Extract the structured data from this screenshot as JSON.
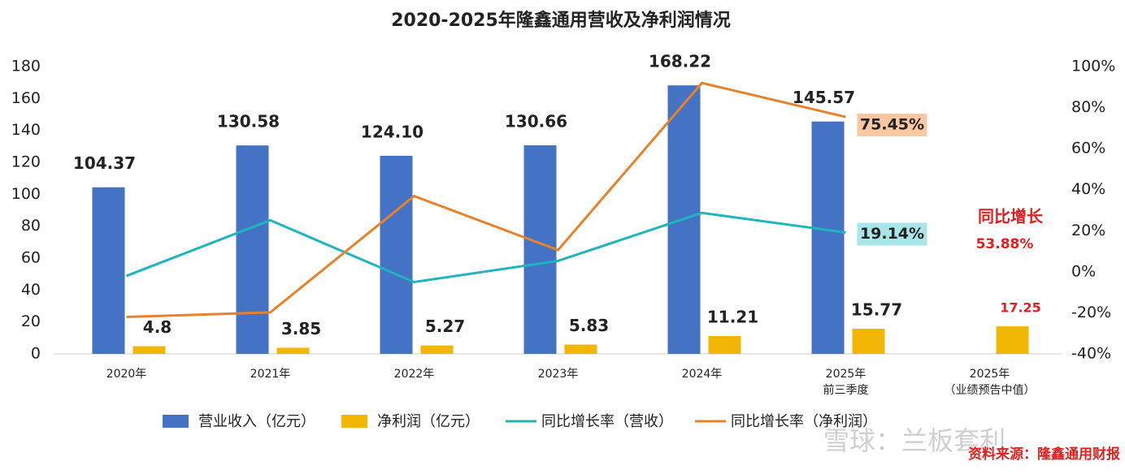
{
  "chart_data": {
    "type": "bar_line",
    "title": "2020-2025年隆鑫通用营收及净利润情况",
    "categories": [
      [
        "2020年"
      ],
      [
        "2021年"
      ],
      [
        "2022年"
      ],
      [
        "2023年"
      ],
      [
        "2024年"
      ],
      [
        "2025年",
        "前三季度"
      ],
      [
        "2025年",
        "（业绩预告中值）"
      ]
    ],
    "series": [
      {
        "name": "营业收入（亿元）",
        "kind": "bar",
        "color": "#4472c4",
        "values": [
          104.37,
          130.58,
          124.1,
          130.66,
          168.22,
          145.57,
          null
        ],
        "value_labels": [
          "104.37",
          "130.58",
          "124.10",
          "130.66",
          "168.22",
          "145.57",
          null
        ]
      },
      {
        "name": "净利润（亿元）",
        "kind": "bar",
        "color": "#f2b705",
        "values": [
          4.8,
          3.85,
          5.27,
          5.83,
          11.21,
          15.77,
          17.25
        ],
        "value_label_colors": [
          "#222",
          "#222",
          "#222",
          "#222",
          "#222",
          "#222",
          "#e02020"
        ]
      },
      {
        "name": "同比增长率（营收）",
        "kind": "line",
        "axis": "y2",
        "color": "#1fb5c0",
        "label_background": "#a8e6ea",
        "values": [
          -2,
          25.1,
          -5,
          5.3,
          28.7,
          19.14,
          null
        ],
        "value_labels": [
          null,
          null,
          null,
          null,
          null,
          "19.14%",
          null
        ]
      },
      {
        "name": "同比增长率（净利润）",
        "kind": "line",
        "axis": "y2",
        "color": "#e8822a",
        "label_background": "#f9c8a2",
        "values": [
          -22,
          -19.8,
          36.9,
          10.6,
          92,
          75.45,
          null
        ],
        "value_labels": [
          null,
          null,
          null,
          null,
          null,
          "75.45%",
          null
        ]
      }
    ],
    "ylim": [
      0,
      180
    ],
    "yticks": [
      0,
      20,
      40,
      60,
      80,
      100,
      120,
      140,
      160,
      180
    ],
    "y2lim": [
      -40,
      100
    ],
    "y2ticks": [
      {
        "value": -40,
        "label": "-40%"
      },
      {
        "value": -20,
        "label": "-20%"
      },
      {
        "value": 0,
        "label": "0%"
      },
      {
        "value": 20,
        "label": "20%"
      },
      {
        "value": 40,
        "label": "40%"
      },
      {
        "value": 60,
        "label": "60%"
      },
      {
        "value": 80,
        "label": "80%"
      },
      {
        "value": 100,
        "label": "100%"
      }
    ],
    "annotations": [
      "同比增长",
      "53.88%"
    ],
    "source": "资料来源：隆鑫通用财报",
    "watermark": "雪球：兰板套利"
  }
}
